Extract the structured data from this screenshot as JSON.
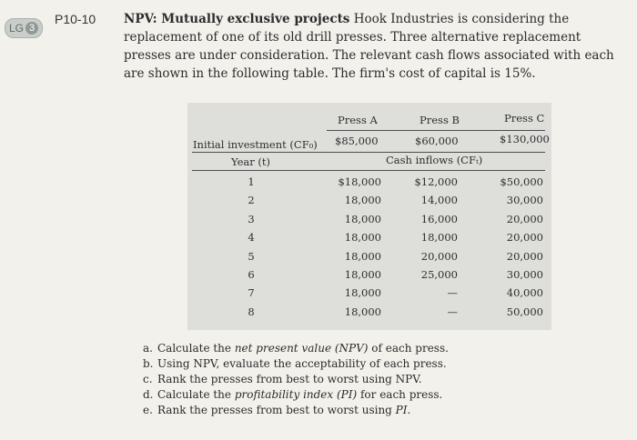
{
  "badge": {
    "prefix": "LG",
    "number": "3"
  },
  "problem": {
    "id": "P10-10",
    "title": "NPV: Mutually exclusive projects",
    "body": "Hook Industries is considering the replacement of one of its old drill presses. Three alternative replacement presses are under consideration. The relevant cash flows associated with each are shown in the following table. The firm's cost of capital is 15%."
  },
  "table": {
    "columns": [
      "Press A",
      "Press B",
      "Press C"
    ],
    "initial_label": "Initial investment (CF₀)",
    "initial": [
      "$85,000",
      "$60,000",
      "$130,000"
    ],
    "year_label": "Year (t)",
    "cash_label": "Cash inflows (CFₜ)",
    "rows": [
      {
        "year": "1",
        "a": "$18,000",
        "b": "$12,000",
        "c": "$50,000"
      },
      {
        "year": "2",
        "a": "18,000",
        "b": "14,000",
        "c": "30,000"
      },
      {
        "year": "3",
        "a": "18,000",
        "b": "16,000",
        "c": "20,000"
      },
      {
        "year": "4",
        "a": "18,000",
        "b": "18,000",
        "c": "20,000"
      },
      {
        "year": "5",
        "a": "18,000",
        "b": "20,000",
        "c": "20,000"
      },
      {
        "year": "6",
        "a": "18,000",
        "b": "25,000",
        "c": "30,000"
      },
      {
        "year": "7",
        "a": "18,000",
        "b": "—",
        "c": "40,000"
      },
      {
        "year": "8",
        "a": "18,000",
        "b": "—",
        "c": "50,000"
      }
    ]
  },
  "questions": [
    {
      "letter": "a.",
      "pre": "Calculate the ",
      "em": "net present value (NPV)",
      "post": " of each press."
    },
    {
      "letter": "b.",
      "pre": "Using NPV, evaluate the acceptability of each press.",
      "em": "",
      "post": ""
    },
    {
      "letter": "c.",
      "pre": "Rank the presses from best to worst using NPV.",
      "em": "",
      "post": ""
    },
    {
      "letter": "d.",
      "pre": "Calculate the ",
      "em": "profitability index (PI)",
      "post": " for each press."
    },
    {
      "letter": "e.",
      "pre": "Rank the presses from best to worst using ",
      "em": "PI",
      "post": "."
    }
  ]
}
